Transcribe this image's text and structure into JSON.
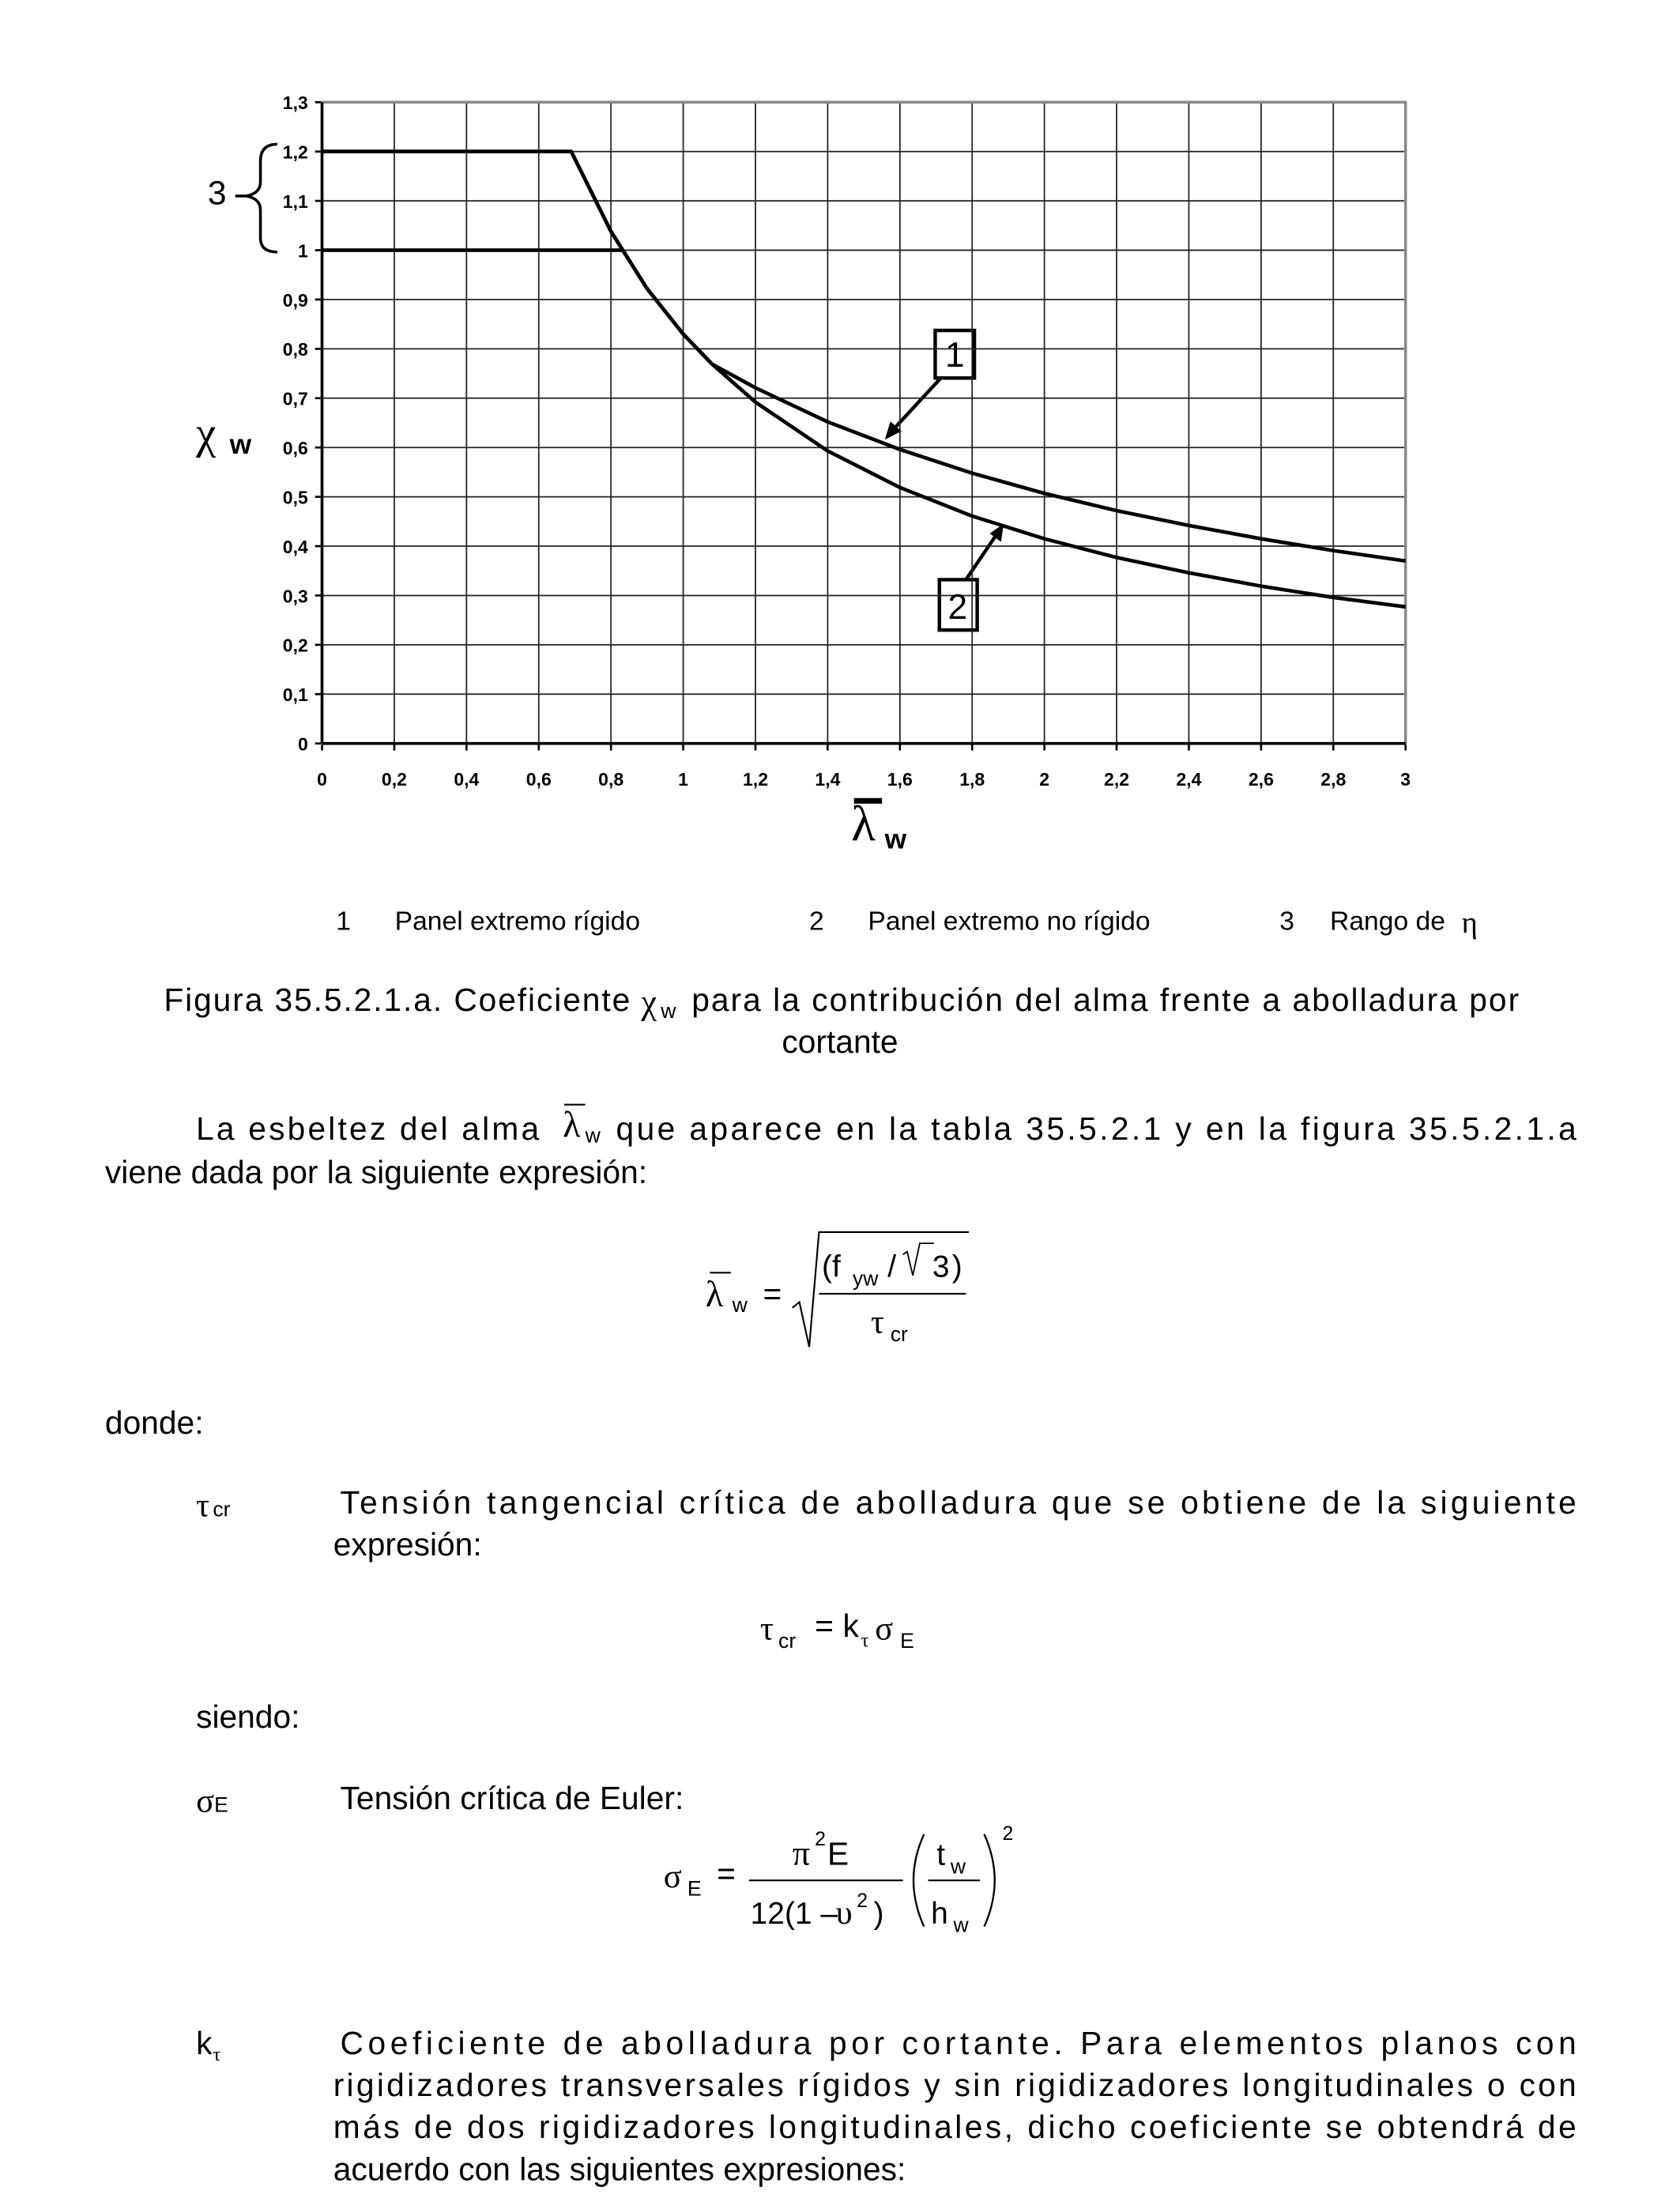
{
  "chart_data": {
    "type": "line",
    "x_label": {
      "symbol": "λ",
      "sub": "w"
    },
    "y_label": {
      "symbol": "χ",
      "sub": "w"
    },
    "xlim": [
      0,
      3
    ],
    "ylim": [
      0,
      1.3
    ],
    "xticks": [
      0,
      {
        "value": 0.2,
        "label": "0,2"
      },
      {
        "value": 0.4,
        "label": "0,4"
      },
      {
        "value": 0.6,
        "label": "0,6"
      },
      {
        "value": 0.8,
        "label": "0,8"
      },
      1,
      {
        "value": 1.2,
        "label": "1,2"
      },
      {
        "value": 1.4,
        "label": "1,4"
      },
      {
        "value": 1.6,
        "label": "1,6"
      },
      {
        "value": 1.8,
        "label": "1,8"
      },
      2,
      {
        "value": 2.2,
        "label": "2,2"
      },
      {
        "value": 2.4,
        "label": "2,4"
      },
      {
        "value": 2.6,
        "label": "2,6"
      },
      {
        "value": 2.8,
        "label": "2,8"
      },
      3
    ],
    "yticks": [
      0,
      {
        "value": 0.1,
        "label": "0,1"
      },
      {
        "value": 0.2,
        "label": "0,2"
      },
      {
        "value": 0.3,
        "label": "0,3"
      },
      {
        "value": 0.4,
        "label": "0,4"
      },
      {
        "value": 0.5,
        "label": "0,5"
      },
      {
        "value": 0.6,
        "label": "0,6"
      },
      {
        "value": 0.7,
        "label": "0,7"
      },
      {
        "value": 0.8,
        "label": "0,8"
      },
      {
        "value": 0.9,
        "label": "0,9"
      },
      1,
      {
        "value": 1.1,
        "label": "1,1"
      },
      {
        "value": 1.2,
        "label": "1,2"
      },
      {
        "value": 1.3,
        "label": "1,3"
      }
    ],
    "grid": true,
    "series": [
      {
        "color": "#000000",
        "x": [
          0,
          0.69,
          0.8,
          0.9,
          1.0,
          1.08,
          1.2,
          1.4,
          1.6,
          1.8,
          2.0,
          2.2,
          2.4,
          2.6,
          2.8,
          3.0
        ],
        "values": [
          1.2,
          1.2,
          1.038,
          0.922,
          0.83,
          0.769,
          0.721,
          0.652,
          0.596,
          0.548,
          0.507,
          0.472,
          0.442,
          0.415,
          0.391,
          0.37
        ]
      },
      {
        "color": "#000000",
        "x": [
          0,
          0.69,
          0.8,
          0.9,
          1.0,
          1.08,
          1.2,
          1.4,
          1.6,
          1.8,
          2.0,
          2.2,
          2.4,
          2.6,
          2.8,
          3.0
        ],
        "values": [
          1.2,
          1.2,
          1.038,
          0.922,
          0.83,
          0.769,
          0.692,
          0.593,
          0.519,
          0.461,
          0.415,
          0.377,
          0.346,
          0.319,
          0.296,
          0.277
        ]
      },
      {
        "color": "#000000",
        "x": [
          0,
          0.83
        ],
        "values": [
          1,
          1
        ]
      }
    ],
    "legend": [
      {
        "key": "1",
        "label": "Panel extremo rígido"
      },
      {
        "key": "2",
        "label": "Panel extremo no rígido"
      },
      {
        "key": "3",
        "label": "Rango de",
        "symbol": "η"
      }
    ]
  },
  "caption": {
    "before": "Figura 35.5.2.1.a. Coeficiente",
    "symbol": "χ",
    "sub": "w",
    "after": "para la contribución del alma frente a abolladura por",
    "line2": "cortante"
  },
  "intro": {
    "before": "La esbeltez del alma",
    "symbol": "λ",
    "sub": "w",
    "after": "que aparece en la tabla 35.5.2.1 y en la figura 35.5.2.1.a",
    "line2": "viene dada por la siguiente expresión:"
  },
  "formula1": {
    "lhs": "λ",
    "lhs_sub": "w",
    "eq": "=",
    "num_open": "(f",
    "num_sub": "yw",
    "num_slash": "/",
    "num_rad": "3",
    "num_close": ")",
    "den": "τ",
    "den_sub": "cr"
  },
  "donde": "donde:",
  "tau": {
    "symbol": "τ",
    "sub": "cr",
    "line1": "Tensión tangencial crítica de abolladura que se obtiene de la siguiente",
    "line2": "expresión:"
  },
  "formula2": {
    "lhs": "τ",
    "lhs_sub": "cr",
    "eq": "=",
    "k": "k",
    "k_sub": "τ",
    "sigma": "σ",
    "sigma_sub": "E"
  },
  "siendo": "siendo:",
  "sigma": {
    "symbol": "σ",
    "sub": "E",
    "text": "Tensión crítica de Euler:"
  },
  "formula3": {
    "lhs": "σ",
    "lhs_sub": "E",
    "eq": "=",
    "num_pi": "π",
    "num_sup": "2",
    "num_e": "E",
    "den": "12(1 –",
    "den_sym": "υ",
    "den_sup": "2",
    "den_close": ")",
    "t": "t",
    "t_sub": "w",
    "h": "h",
    "h_sub": "w",
    "power": "2"
  },
  "ktau": {
    "symbol": "k",
    "sub": "τ",
    "lines": [
      "Coeficiente de abolladura por cortante. Para elementos planos con",
      "rigidizadores transversales rígidos y sin rigidizadores longitudinales o con",
      "más de dos rigidizadores longitudinales, dicho coeficiente se obtendrá de",
      "acuerdo con las siguientes expresiones:"
    ]
  }
}
